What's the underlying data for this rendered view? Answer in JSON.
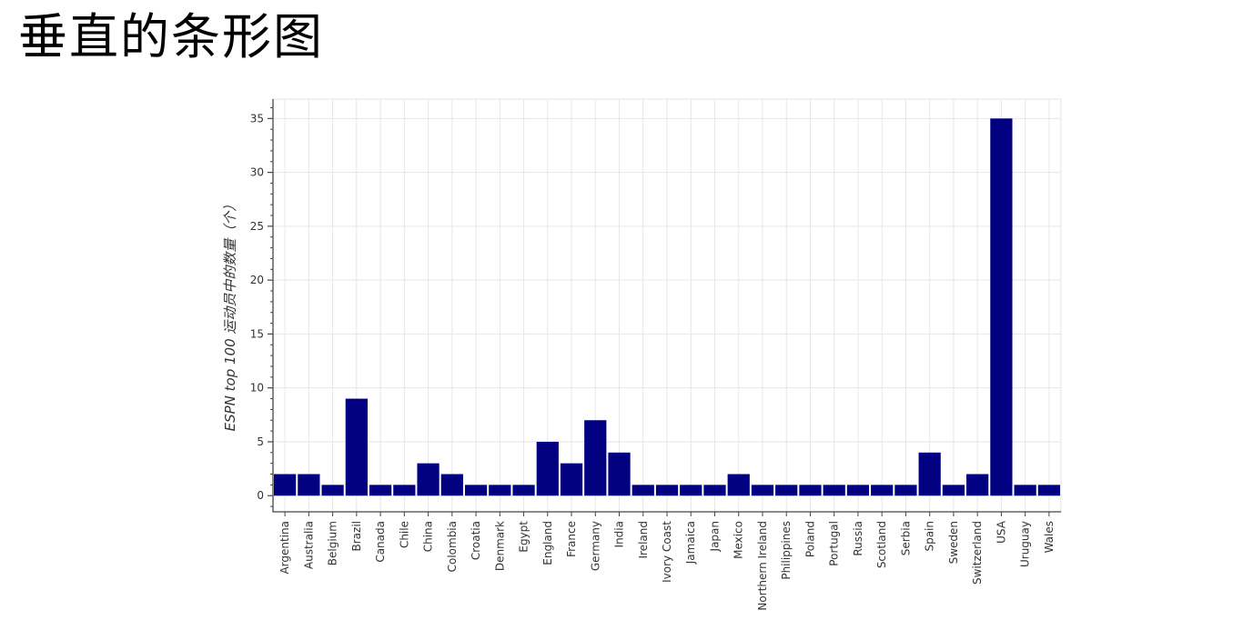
{
  "page": {
    "title": "垂直的条形图"
  },
  "chart_data": {
    "type": "bar",
    "title": "",
    "xlabel": "",
    "ylabel": "ESPN top 100 运动员中的数量（个）",
    "categories": [
      "Argentina",
      "Australia",
      "Belgium",
      "Brazil",
      "Canada",
      "Chile",
      "China",
      "Colombia",
      "Croatia",
      "Denmark",
      "Egypt",
      "England",
      "France",
      "Germany",
      "India",
      "Ireland",
      "Ivory Coast",
      "Jamaica",
      "Japan",
      "Mexico",
      "Northern Ireland",
      "Philippines",
      "Poland",
      "Portugal",
      "Russia",
      "Scotland",
      "Serbia",
      "Spain",
      "Sweden",
      "Switzerland",
      "USA",
      "Uruguay",
      "Wales"
    ],
    "values": [
      2,
      2,
      1,
      9,
      1,
      1,
      3,
      2,
      1,
      1,
      1,
      5,
      3,
      7,
      4,
      1,
      1,
      1,
      1,
      2,
      1,
      1,
      1,
      1,
      1,
      1,
      1,
      4,
      1,
      2,
      35,
      1,
      1
    ],
    "ylim": [
      -1.5,
      36.8
    ],
    "yticks": [
      0,
      5,
      10,
      15,
      20,
      25,
      30,
      35
    ],
    "grid": true,
    "bar_color": "#000080",
    "grid_color": "#e6e6e6",
    "axis_color": "#444444"
  }
}
